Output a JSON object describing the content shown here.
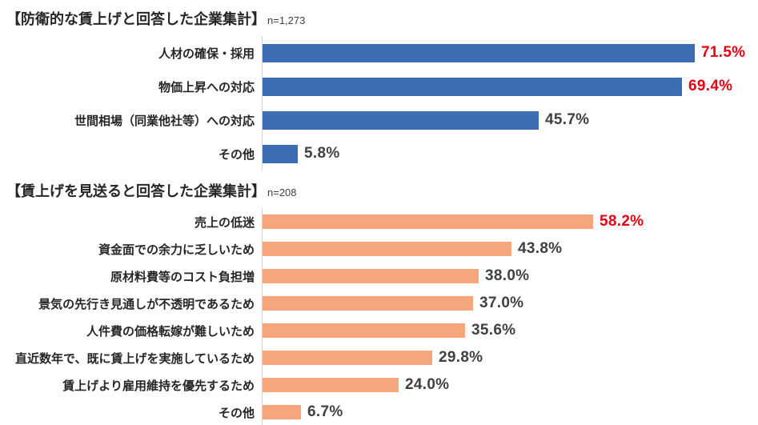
{
  "colors": {
    "bar_blue": "#3c6cb4",
    "bar_orange": "#f6a57d",
    "highlight_red": "#e60012",
    "value_text": "#404040",
    "label_text": "#262626",
    "axis_line": "#d6d3d3",
    "background": "#ffffff"
  },
  "chart_data": [
    {
      "type": "bar",
      "orientation": "horizontal",
      "title": "【防衛的な賃上げと回答した企業集計】",
      "n_label": "n=1,273",
      "bar_color": "#3c6cb4",
      "categories": [
        "人材の確保・採用",
        "物価上昇への対応",
        "世間相場（同業他社等）への対応",
        "その他"
      ],
      "values": [
        71.5,
        69.4,
        45.7,
        5.8
      ],
      "value_labels": [
        "71.5%",
        "69.4%",
        "45.7%",
        "5.8%"
      ],
      "highlighted": [
        true,
        true,
        false,
        false
      ],
      "xlim": [
        0,
        80
      ],
      "grid": false,
      "legend": false,
      "xlabel": "",
      "ylabel": ""
    },
    {
      "type": "bar",
      "orientation": "horizontal",
      "title": "【賃上げを見送ると回答した企業集計】",
      "n_label": "n=208",
      "bar_color": "#f6a57d",
      "categories": [
        "売上の低迷",
        "資金面での余力に乏しいため",
        "原材料費等のコスト負担増",
        "景気の先行き見通しが不透明であるため",
        "人件費の価格転嫁が難しいため",
        "直近数年で、既に賃上げを実施しているため",
        "賃上げより雇用維持を優先するため",
        "その他"
      ],
      "values": [
        58.2,
        43.8,
        38.0,
        37.0,
        35.6,
        29.8,
        24.0,
        6.7
      ],
      "value_labels": [
        "58.2%",
        "43.8%",
        "38.0%",
        "37.0%",
        "35.6%",
        "29.8%",
        "24.0%",
        "6.7%"
      ],
      "highlighted": [
        true,
        false,
        false,
        false,
        false,
        false,
        false,
        false
      ],
      "xlim": [
        0,
        70
      ],
      "grid": false,
      "legend": false,
      "xlabel": "",
      "ylabel": ""
    }
  ]
}
